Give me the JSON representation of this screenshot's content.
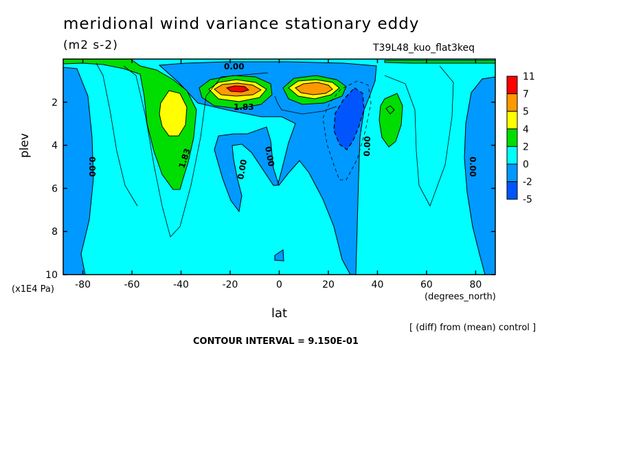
{
  "chart_data": {
    "type": "heatmap",
    "title": "meridional wind variance  stationary eddy",
    "units": "(m2 s-2)",
    "run_label": "T39L48_kuo_flat3keq",
    "xlabel": "lat",
    "x_units": "(degrees_north)",
    "ylabel": "plev",
    "y_units": "(x1E4 Pa)",
    "xlim": [
      -88,
      88
    ],
    "ylim": [
      10,
      0
    ],
    "x_ticks": [
      "-80",
      "-60",
      "-40",
      "-20",
      "0",
      "20",
      "40",
      "60",
      "80"
    ],
    "y_ticks": [
      "2",
      "4",
      "6",
      "8",
      "10"
    ],
    "colorbar": {
      "labels": [
        "11",
        "7",
        "5",
        "4",
        "2",
        "0",
        "-2",
        "-5"
      ],
      "colors": [
        "#ff0000",
        "#ff9900",
        "#ffff00",
        "#00dd00",
        "#00ffff",
        "#0099ff",
        "#0055ff"
      ]
    },
    "contour_labels": [
      "0.00",
      "1.83",
      "0.00",
      "0.00",
      "1.83",
      "0.00",
      "0.00",
      "0.00"
    ],
    "features": [
      {
        "name": "max near -17 lat",
        "lat": -17,
        "plev": 1.5,
        "value": 11
      },
      {
        "name": "max near 15 lat",
        "lat": 15,
        "plev": 1.5,
        "value": 7
      },
      {
        "name": "max near -43 lat",
        "lat": -43,
        "plev": 2.5,
        "value": 5
      },
      {
        "name": "max near 45 lat",
        "lat": 45,
        "plev": 2.5,
        "value": 4
      },
      {
        "name": "min near 28 lat",
        "lat": 28,
        "plev": 3.0,
        "value": -4
      }
    ],
    "note": "[ (diff) from (mean) control ]",
    "contour_interval": "CONTOUR INTERVAL = 9.150E-01"
  },
  "colors": {
    "red": "#ff0000",
    "orange": "#ff9900",
    "yellow": "#ffff00",
    "green": "#00dd00",
    "cyan": "#00ffff",
    "blue": "#0099ff",
    "darkblue": "#0055ff"
  }
}
